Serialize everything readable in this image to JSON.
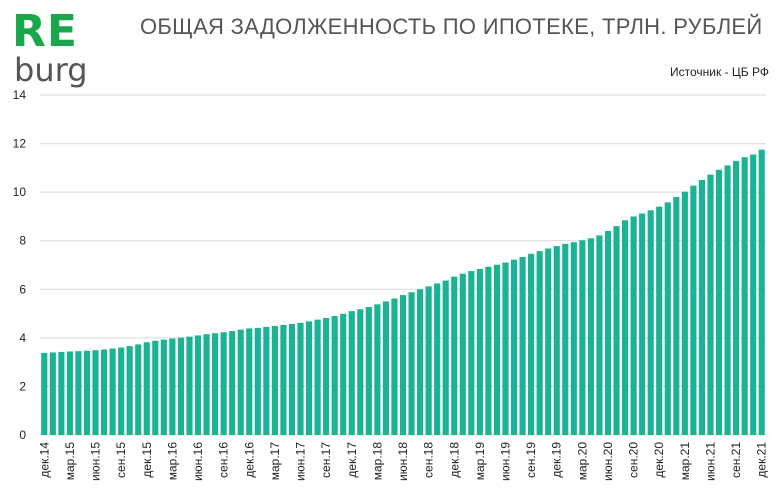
{
  "logo": {
    "top_text": "RE",
    "bottom_text": "burg",
    "top_color": "#1aa64a",
    "bottom_color": "#555555"
  },
  "header": {
    "title": "ОБЩАЯ ЗАДОЛЖЕННОСТЬ ПО ИПОТЕКЕ, ТРЛН. РУБЛЕЙ",
    "source": "Источник  - ЦБ РФ"
  },
  "colors": {
    "bar": "#1ab394",
    "grid": "#d9d9d9",
    "axis_text": "#222222"
  },
  "chart_data": {
    "type": "bar",
    "title": "ОБЩАЯ ЗАДОЛЖЕННОСТЬ ПО ИПОТЕКЕ, ТРЛН. РУБЛЕЙ",
    "xlabel": "",
    "ylabel": "",
    "ylim": [
      0,
      14
    ],
    "y_ticks": [
      0,
      2,
      4,
      6,
      8,
      10,
      12,
      14
    ],
    "grid": true,
    "categories": [
      "дек.14",
      "",
      "",
      "мар.15",
      "",
      "",
      "июн.15",
      "",
      "",
      "сен.15",
      "",
      "",
      "дек.15",
      "",
      "",
      "мар.16",
      "",
      "",
      "июн.16",
      "",
      "",
      "сен.16",
      "",
      "",
      "дек.16",
      "",
      "",
      "мар.17",
      "",
      "",
      "июн.17",
      "",
      "",
      "сен.17",
      "",
      "",
      "дек.17",
      "",
      "",
      "мар.18",
      "",
      "",
      "июн.18",
      "",
      "",
      "сен.18",
      "",
      "",
      "дек.18",
      "",
      "",
      "мар.19",
      "",
      "",
      "июн.19",
      "",
      "",
      "сен.19",
      "",
      "",
      "дек.19",
      "",
      "",
      "мар.20",
      "",
      "",
      "июн.20",
      "",
      "",
      "сен.20",
      "",
      "",
      "дек.20",
      "",
      "",
      "мар.21",
      "",
      "",
      "июн.21",
      "",
      "",
      "сен.21",
      "",
      "",
      "дек.21"
    ],
    "values": [
      3.38,
      3.4,
      3.42,
      3.44,
      3.45,
      3.47,
      3.49,
      3.52,
      3.56,
      3.6,
      3.66,
      3.73,
      3.82,
      3.88,
      3.93,
      3.97,
      4.01,
      4.05,
      4.1,
      4.15,
      4.19,
      4.23,
      4.28,
      4.34,
      4.39,
      4.41,
      4.45,
      4.49,
      4.53,
      4.57,
      4.62,
      4.68,
      4.75,
      4.82,
      4.9,
      4.99,
      5.1,
      5.18,
      5.27,
      5.38,
      5.5,
      5.62,
      5.76,
      5.88,
      6.0,
      6.12,
      6.24,
      6.36,
      6.52,
      6.64,
      6.75,
      6.84,
      6.93,
      7.01,
      7.1,
      7.22,
      7.33,
      7.46,
      7.57,
      7.68,
      7.78,
      7.87,
      7.94,
      8.02,
      8.1,
      8.22,
      8.4,
      8.6,
      8.84,
      9.0,
      9.12,
      9.25,
      9.4,
      9.58,
      9.8,
      10.02,
      10.27,
      10.5,
      10.72,
      10.92,
      11.1,
      11.28,
      11.44,
      11.55,
      11.75
    ]
  }
}
